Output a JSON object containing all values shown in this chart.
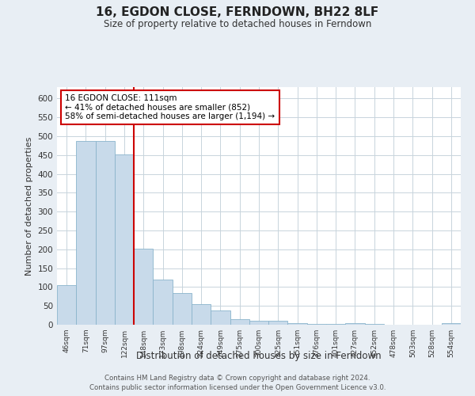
{
  "title": "16, EGDON CLOSE, FERNDOWN, BH22 8LF",
  "subtitle": "Size of property relative to detached houses in Ferndown",
  "xlabel": "Distribution of detached houses by size in Ferndown",
  "ylabel": "Number of detached properties",
  "bar_labels": [
    "46sqm",
    "71sqm",
    "97sqm",
    "122sqm",
    "148sqm",
    "173sqm",
    "198sqm",
    "224sqm",
    "249sqm",
    "275sqm",
    "300sqm",
    "325sqm",
    "351sqm",
    "376sqm",
    "401sqm",
    "427sqm",
    "452sqm",
    "478sqm",
    "503sqm",
    "528sqm",
    "554sqm"
  ],
  "bar_values": [
    105,
    487,
    487,
    452,
    202,
    120,
    83,
    55,
    38,
    15,
    10,
    10,
    5,
    2,
    2,
    5,
    2,
    0,
    0,
    0,
    5
  ],
  "bar_color": "#c8daea",
  "bar_edgecolor": "#8ab4cc",
  "vline_x": 3.5,
  "vline_color": "#cc0000",
  "annotation_title": "16 EGDON CLOSE: 111sqm",
  "annotation_line1": "← 41% of detached houses are smaller (852)",
  "annotation_line2": "58% of semi-detached houses are larger (1,194) →",
  "annotation_box_edgecolor": "#cc0000",
  "annotation_box_facecolor": "#ffffff",
  "ylim": [
    0,
    630
  ],
  "yticks": [
    0,
    50,
    100,
    150,
    200,
    250,
    300,
    350,
    400,
    450,
    500,
    550,
    600
  ],
  "bg_color": "#e8eef4",
  "plot_bg_color": "#ffffff",
  "footer1": "Contains HM Land Registry data © Crown copyright and database right 2024.",
  "footer2": "Contains public sector information licensed under the Open Government Licence v3.0.",
  "grid_color": "#c8d4dc"
}
